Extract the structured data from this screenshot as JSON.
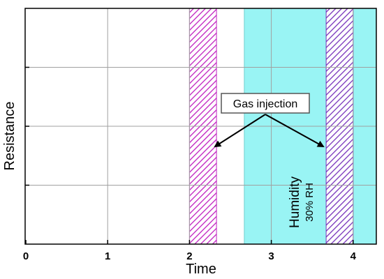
{
  "chart_data": {
    "type": "line",
    "xlabel": "Time",
    "ylabel": "Resistance",
    "xlim": [
      0,
      4.3
    ],
    "x_ticks": [
      0,
      1,
      2,
      3,
      4
    ],
    "x_tick_labels": [
      "0",
      "1",
      "2",
      "3",
      "4"
    ],
    "y_ticks_count": 4,
    "y_tick_labels_shown": false,
    "grid": true,
    "regions": [
      {
        "name": "gas-injection-1",
        "x": [
          2.0,
          2.33
        ],
        "fill": "hatched",
        "color": "#c020c0"
      },
      {
        "name": "humidity",
        "x": [
          2.67,
          4.3
        ],
        "fill": "solid",
        "color": "#99f4f4"
      },
      {
        "name": "gas-injection-2",
        "x": [
          3.67,
          4.0
        ],
        "fill": "hatched",
        "color": "#7733bb"
      }
    ],
    "annotations": {
      "gas_injection": {
        "text": "Gas injection",
        "arrows_to": [
          2.33,
          3.67
        ]
      },
      "humidity": {
        "text": "Humidity",
        "subtext": "30% RH"
      }
    }
  },
  "colors": {
    "grid": "#a0a0a0",
    "axis": "#000000",
    "humidity": "#99f4f4",
    "hatch_gas1": "#c020c0",
    "hatch_gas2": "#7733bb",
    "callout_border": "#555555"
  }
}
